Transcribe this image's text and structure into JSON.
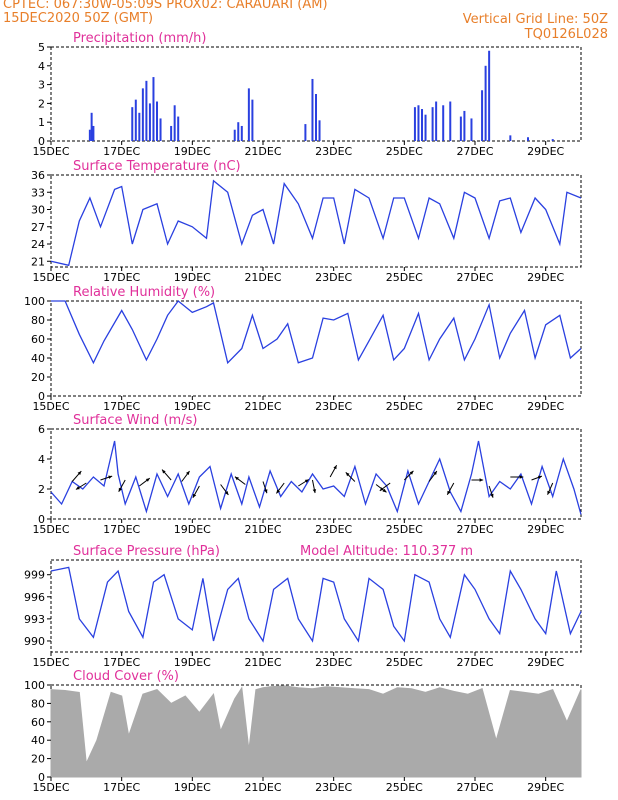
{
  "header": {
    "line1_left": "CPTEC:   067:30W-05:09S   PROX02: CARAUARI (AM)",
    "line2_left": "15DEC2020 50Z (GMT)",
    "line2_right": "Vertical Grid Line: 50Z",
    "line3_right": "TQ0126L028"
  },
  "colors": {
    "header": "#e87f2a",
    "title": "#e0309a",
    "line": "#2a40e0",
    "bar": "#2a40e0",
    "cloud": "#aaaaaa",
    "arrow": "#000000"
  },
  "x_axis": {
    "ticks": [
      "15DEC",
      "17DEC",
      "19DEC",
      "21DEC",
      "23DEC",
      "25DEC",
      "27DEC",
      "29DEC"
    ],
    "tick_days": [
      0,
      2,
      4,
      6,
      8,
      10,
      12,
      14
    ],
    "range_days": [
      0,
      15
    ]
  },
  "chart_data": [
    {
      "id": "precip",
      "type": "bar",
      "title": "Precipitation (mm/h)",
      "ylim": [
        0,
        5
      ],
      "yticks": [
        0,
        1,
        2,
        3,
        4,
        5
      ],
      "note": "hourly precipitation",
      "x": [
        1.1,
        1.15,
        1.2,
        2.3,
        2.4,
        2.5,
        2.6,
        2.7,
        2.8,
        2.9,
        3.0,
        3.1,
        3.4,
        3.5,
        3.6,
        5.2,
        5.3,
        5.4,
        5.6,
        5.7,
        7.2,
        7.4,
        7.5,
        7.6,
        10.3,
        10.4,
        10.5,
        10.6,
        10.8,
        10.9,
        11.1,
        11.3,
        11.6,
        11.7,
        11.9,
        12.2,
        12.3,
        12.4,
        13.0,
        13.5,
        14.2
      ],
      "values": [
        0.6,
        1.5,
        0.8,
        1.8,
        2.2,
        1.5,
        2.8,
        3.2,
        2.0,
        3.4,
        2.1,
        1.2,
        0.8,
        1.9,
        1.3,
        0.6,
        1.0,
        0.8,
        2.8,
        2.2,
        0.9,
        3.3,
        2.5,
        1.1,
        1.8,
        1.9,
        1.7,
        1.4,
        1.8,
        2.1,
        1.9,
        2.1,
        1.3,
        1.6,
        1.2,
        2.7,
        4.0,
        4.8,
        0.3,
        0.2,
        0.1
      ]
    },
    {
      "id": "temp",
      "type": "line",
      "title": "Surface Temperature (nC)",
      "ylim": [
        20,
        36
      ],
      "yticks": [
        21,
        24,
        27,
        30,
        33,
        36
      ],
      "x": [
        0,
        0.5,
        0.8,
        1.1,
        1.4,
        1.8,
        2.0,
        2.3,
        2.6,
        3.0,
        3.3,
        3.6,
        4.0,
        4.4,
        4.6,
        5.0,
        5.4,
        5.7,
        6.0,
        6.3,
        6.6,
        7.0,
        7.4,
        7.7,
        8.0,
        8.3,
        8.6,
        9.0,
        9.4,
        9.7,
        10.0,
        10.4,
        10.7,
        11.0,
        11.4,
        11.7,
        12.0,
        12.4,
        12.7,
        13.0,
        13.3,
        13.7,
        14.0,
        14.4,
        14.6,
        15.0
      ],
      "values": [
        21,
        20.3,
        28,
        32,
        27,
        33.5,
        34,
        24,
        30,
        31,
        24,
        28,
        27,
        25,
        35,
        33,
        24,
        29,
        30,
        24,
        34.5,
        31,
        25,
        32,
        32,
        24,
        33.5,
        32,
        25,
        32,
        32,
        25,
        32,
        31,
        25,
        33,
        32,
        25,
        31.5,
        32,
        26,
        32,
        30,
        24,
        33,
        32
      ]
    },
    {
      "id": "rh",
      "type": "line",
      "title": "Relative Humidity (%)",
      "ylim": [
        0,
        100
      ],
      "yticks": [
        0,
        20,
        40,
        60,
        80,
        100
      ],
      "x": [
        0,
        0.4,
        0.8,
        1.2,
        1.5,
        2.0,
        2.3,
        2.7,
        3.0,
        3.3,
        3.6,
        4.0,
        4.4,
        4.6,
        5.0,
        5.4,
        5.7,
        6.0,
        6.4,
        6.7,
        7.0,
        7.4,
        7.7,
        8.0,
        8.4,
        8.7,
        9.0,
        9.4,
        9.7,
        10.0,
        10.4,
        10.7,
        11.0,
        11.4,
        11.7,
        12.0,
        12.4,
        12.7,
        13.0,
        13.4,
        13.7,
        14.0,
        14.4,
        14.7,
        15.0
      ],
      "values": [
        100,
        100,
        65,
        35,
        58,
        90,
        70,
        38,
        60,
        85,
        100,
        88,
        94,
        98,
        35,
        50,
        85,
        50,
        60,
        76,
        35,
        40,
        82,
        80,
        87,
        38,
        58,
        85,
        38,
        50,
        87,
        38,
        60,
        82,
        38,
        60,
        96,
        40,
        66,
        90,
        40,
        75,
        85,
        40,
        50
      ]
    },
    {
      "id": "wind",
      "type": "line",
      "title": "Surface Wind (m/s)",
      "ylim": [
        0,
        6
      ],
      "yticks": [
        0,
        2,
        4,
        6
      ],
      "x": [
        0,
        0.3,
        0.6,
        0.9,
        1.2,
        1.5,
        1.8,
        1.9,
        2.1,
        2.4,
        2.7,
        3.0,
        3.3,
        3.6,
        3.9,
        4.2,
        4.5,
        4.8,
        5.1,
        5.4,
        5.6,
        5.9,
        6.2,
        6.5,
        6.8,
        7.1,
        7.4,
        7.7,
        8.0,
        8.3,
        8.6,
        8.9,
        9.2,
        9.5,
        9.8,
        10.1,
        10.4,
        10.7,
        11.0,
        11.3,
        11.6,
        11.9,
        12.1,
        12.4,
        12.7,
        13.0,
        13.3,
        13.6,
        13.9,
        14.2,
        14.5,
        14.8,
        15.0
      ],
      "values": [
        1.8,
        1.0,
        2.5,
        2.0,
        2.8,
        2.2,
        5.2,
        3.0,
        1.0,
        2.8,
        0.5,
        3.0,
        1.5,
        3.0,
        1.0,
        2.8,
        3.5,
        0.7,
        3.0,
        1.0,
        2.8,
        0.8,
        3.2,
        1.5,
        2.5,
        1.8,
        3.0,
        2.0,
        2.2,
        1.5,
        3.5,
        1.0,
        3.0,
        2.2,
        0.5,
        3.2,
        1.0,
        2.5,
        4.0,
        1.8,
        0.5,
        3.0,
        5.2,
        1.5,
        2.5,
        2.0,
        3.0,
        1.0,
        3.5,
        1.5,
        4.0,
        2.0,
        0.3
      ],
      "arrows": [
        {
          "x": 0.6,
          "y": 2.5,
          "u": 0.7,
          "v": 0.8
        },
        {
          "x": 1.0,
          "y": 2.4,
          "u": -0.8,
          "v": -0.5
        },
        {
          "x": 1.4,
          "y": 2.6,
          "u": 0.9,
          "v": 0.3
        },
        {
          "x": 2.1,
          "y": 2.6,
          "u": -0.5,
          "v": -0.9
        },
        {
          "x": 2.5,
          "y": 2.2,
          "u": 0.8,
          "v": 0.6
        },
        {
          "x": 3.4,
          "y": 2.6,
          "u": -0.7,
          "v": 0.8
        },
        {
          "x": 3.7,
          "y": 2.5,
          "u": 0.6,
          "v": 0.8
        },
        {
          "x": 4.2,
          "y": 2.2,
          "u": -0.5,
          "v": -0.9
        },
        {
          "x": 4.8,
          "y": 2.3,
          "u": 0.6,
          "v": -0.8
        },
        {
          "x": 5.5,
          "y": 2.3,
          "u": -0.8,
          "v": 0.6
        },
        {
          "x": 6.0,
          "y": 2.5,
          "u": 0.3,
          "v": -0.9
        },
        {
          "x": 6.6,
          "y": 2.4,
          "u": -0.6,
          "v": -0.8
        },
        {
          "x": 7.0,
          "y": 2.2,
          "u": 0.8,
          "v": 0.5
        },
        {
          "x": 7.4,
          "y": 2.6,
          "u": 0.2,
          "v": -1.0
        },
        {
          "x": 7.9,
          "y": 2.8,
          "u": 0.5,
          "v": 0.9
        },
        {
          "x": 8.6,
          "y": 2.5,
          "u": -0.7,
          "v": 0.7
        },
        {
          "x": 9.2,
          "y": 2.3,
          "u": 0.8,
          "v": -0.6
        },
        {
          "x": 9.6,
          "y": 2.4,
          "u": -0.8,
          "v": -0.6
        },
        {
          "x": 10.0,
          "y": 2.6,
          "u": 0.7,
          "v": 0.7
        },
        {
          "x": 10.7,
          "y": 2.5,
          "u": 0.6,
          "v": 0.8
        },
        {
          "x": 11.4,
          "y": 2.4,
          "u": -0.5,
          "v": -0.9
        },
        {
          "x": 11.9,
          "y": 2.6,
          "u": 0.9,
          "v": 0.0
        },
        {
          "x": 12.4,
          "y": 2.2,
          "u": 0.3,
          "v": -0.9
        },
        {
          "x": 13.0,
          "y": 2.8,
          "u": 1.0,
          "v": 0.0
        },
        {
          "x": 13.6,
          "y": 2.6,
          "u": 0.8,
          "v": 0.3
        },
        {
          "x": 14.2,
          "y": 2.4,
          "u": -0.4,
          "v": -0.9
        }
      ]
    },
    {
      "id": "press",
      "type": "line",
      "title": "Surface Pressure (hPa)",
      "annotation": "Model Altitude: 110.377 m",
      "ylim": [
        988.5,
        1001
      ],
      "yticks": [
        990,
        993,
        996,
        999
      ],
      "x": [
        0,
        0.5,
        0.8,
        1.2,
        1.6,
        1.9,
        2.2,
        2.6,
        2.9,
        3.2,
        3.6,
        4.0,
        4.3,
        4.6,
        5.0,
        5.3,
        5.6,
        6.0,
        6.3,
        6.7,
        7.0,
        7.4,
        7.7,
        8.0,
        8.3,
        8.7,
        9.0,
        9.4,
        9.7,
        10.0,
        10.3,
        10.7,
        11.0,
        11.3,
        11.7,
        12.0,
        12.4,
        12.7,
        13.0,
        13.3,
        13.7,
        14.0,
        14.3,
        14.7,
        15.0
      ],
      "values": [
        999.5,
        1000,
        993,
        990.5,
        998,
        999.5,
        994,
        990.5,
        998,
        999,
        993,
        991.5,
        998.5,
        990,
        997,
        998.5,
        993,
        990,
        997,
        998.5,
        993,
        990,
        998.5,
        998,
        993,
        990,
        998.5,
        997,
        992,
        990,
        999,
        998,
        993,
        990.5,
        999,
        997,
        993,
        991,
        999.5,
        997,
        993,
        991,
        999.5,
        991,
        994
      ]
    },
    {
      "id": "cloud",
      "type": "area",
      "title": "Cloud Cover (%)",
      "ylim": [
        0,
        100
      ],
      "yticks": [
        0,
        20,
        40,
        60,
        80,
        100
      ],
      "x": [
        0,
        0.4,
        0.8,
        1.0,
        1.3,
        1.7,
        2.0,
        2.2,
        2.6,
        3.0,
        3.4,
        3.8,
        4.2,
        4.6,
        4.8,
        5.2,
        5.4,
        5.6,
        5.8,
        6.0,
        6.2,
        6.6,
        7.0,
        7.4,
        7.8,
        8.2,
        8.6,
        9.0,
        9.4,
        9.8,
        10.2,
        10.6,
        11.0,
        11.4,
        11.8,
        12.2,
        12.6,
        13.0,
        13.4,
        13.8,
        14.2,
        14.6,
        15.0
      ],
      "values": [
        95,
        94,
        92,
        15,
        40,
        92,
        88,
        45,
        90,
        95,
        80,
        88,
        70,
        90,
        50,
        85,
        97,
        30,
        95,
        97,
        98,
        99,
        97,
        96,
        98,
        97,
        96,
        95,
        90,
        97,
        96,
        92,
        97,
        93,
        90,
        96,
        40,
        94,
        92,
        90,
        95,
        60,
        95
      ]
    }
  ]
}
